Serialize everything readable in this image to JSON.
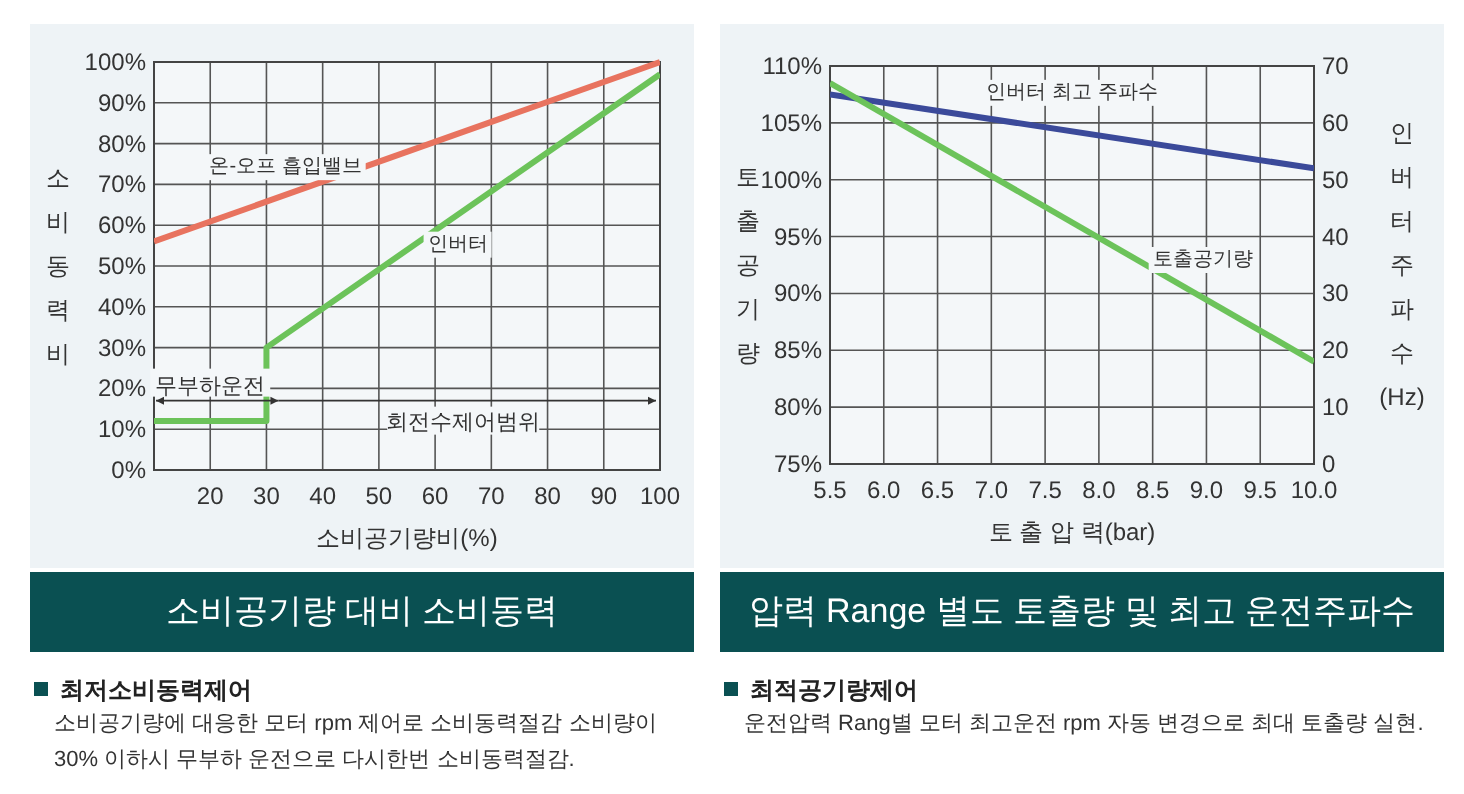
{
  "chart_data": [
    {
      "type": "line",
      "title": "소비공기량 대비 소비동력",
      "xlabel": "소비공기량비(%)",
      "ylabel": "소비동력비",
      "xlim": [
        10,
        100
      ],
      "xticks": [
        20,
        30,
        40,
        50,
        60,
        70,
        80,
        90,
        100
      ],
      "ylim": [
        0,
        100
      ],
      "yticks": [
        {
          "value": 0,
          "label": "0%"
        },
        {
          "value": 10,
          "label": "10%"
        },
        {
          "value": 20,
          "label": "20%"
        },
        {
          "value": 30,
          "label": "30%"
        },
        {
          "value": 40,
          "label": "40%"
        },
        {
          "value": 50,
          "label": "50%"
        },
        {
          "value": 60,
          "label": "60%"
        },
        {
          "value": 70,
          "label": "70%"
        },
        {
          "value": 80,
          "label": "80%"
        },
        {
          "value": 90,
          "label": "90%"
        },
        {
          "value": 100,
          "label": "100%"
        }
      ],
      "grid": true,
      "series": [
        {
          "name": "온-오프 흡입밸브",
          "color": "#e8735f",
          "x": [
            10,
            100
          ],
          "values": [
            56,
            100
          ]
        },
        {
          "name": "인버터",
          "color": "#6cc35a",
          "x": [
            10,
            30,
            30,
            100
          ],
          "values": [
            12,
            12,
            30,
            97
          ]
        }
      ],
      "annotations": [
        "무부하운전",
        "회전수제어범위",
        "최저소비동력제어",
        "소비공기량에 대응한 모터 rpm 제어로 소비동력절감 소비량이 30% 이하시 무부하 운전으로 다시한번 소비동력절감."
      ]
    },
    {
      "type": "line",
      "title": "압력 Range 별도 토출량 및 최고 운전주파수",
      "xlabel": "토 출 압 력(bar)",
      "ylabel": "토출공기량",
      "y2label": "인버터주파수(Hz)",
      "xlim": [
        5.5,
        10
      ],
      "xticks": [
        5.5,
        {
          "value": 6,
          "label": "6.0"
        },
        6.5,
        {
          "value": 7,
          "label": "7.0"
        },
        7.5,
        {
          "value": 8,
          "label": "8.0"
        },
        8.5,
        {
          "value": 9,
          "label": "9.0"
        },
        9.5,
        {
          "value": 10,
          "label": "10.0"
        }
      ],
      "ylim": [
        75,
        110
      ],
      "yticks": [
        {
          "value": 75,
          "label": "75%"
        },
        {
          "value": 80,
          "label": "80%"
        },
        {
          "value": 85,
          "label": "85%"
        },
        {
          "value": 90,
          "label": "90%"
        },
        {
          "value": 95,
          "label": "95%"
        },
        {
          "value": 100,
          "label": "100%"
        },
        {
          "value": 105,
          "label": "105%"
        },
        {
          "value": 110,
          "label": "110%"
        }
      ],
      "y2lim": [
        0,
        70
      ],
      "y2ticks": [
        0,
        10,
        20,
        30,
        40,
        50,
        60,
        70
      ],
      "grid": true,
      "series": [
        {
          "name": "인버터 최고 주파수",
          "color": "#3b4a9a",
          "axis": "y2",
          "x": [
            5.5,
            10
          ],
          "values": [
            65,
            52
          ]
        },
        {
          "name": "토출공기량",
          "color": "#6cc35a",
          "x": [
            5.5,
            10
          ],
          "values": [
            108.5,
            84
          ]
        }
      ],
      "annotations": [
        "최적공기량제어",
        "운전압력 Rang별 모터 최고운전 rpm 자동 변경으로 최대 토출량 실현."
      ]
    }
  ]
}
